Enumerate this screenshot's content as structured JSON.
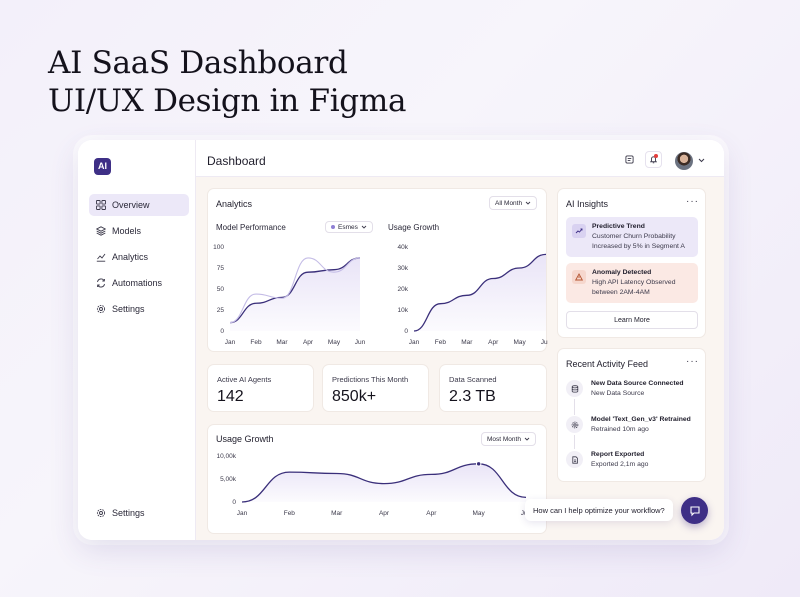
{
  "headline": [
    "AI SaaS Dashboard",
    "UI/UX Design in Figma"
  ],
  "logo": "AI",
  "sidebar": {
    "items": [
      {
        "label": "Overview",
        "icon": "grid-icon",
        "active": true
      },
      {
        "label": "Models",
        "icon": "layers-icon"
      },
      {
        "label": "Analytics",
        "icon": "chart-icon"
      },
      {
        "label": "Automations",
        "icon": "refresh-icon"
      },
      {
        "label": "Settings",
        "icon": "gear-icon"
      }
    ],
    "bottom": {
      "label": "Settings",
      "icon": "gear-icon"
    }
  },
  "header": {
    "title": "Dashboard"
  },
  "analytics": {
    "title": "Analytics",
    "filter": "All Month",
    "model_performance": {
      "title": "Model Performance",
      "filter": "Esmes",
      "chart_data": {
        "type": "area",
        "categories": [
          "Jan",
          "Feb",
          "Mar",
          "Apr",
          "May",
          "Jun"
        ],
        "yticks": [
          "0",
          "25",
          "50",
          "75",
          "100"
        ],
        "ylim": [
          0,
          100
        ],
        "series": [
          {
            "values": [
              10,
              33,
              40,
              70,
              73,
              87
            ]
          },
          {
            "values": [
              10,
              44,
              39,
              87,
              70,
              87
            ]
          }
        ]
      }
    },
    "usage_growth": {
      "title": "Usage Growth",
      "chart_data": {
        "type": "area",
        "categories": [
          "Jan",
          "Feb",
          "Mar",
          "Apr",
          "May",
          "Jun"
        ],
        "yticks": [
          "0",
          "10k",
          "20k",
          "30k",
          "40k"
        ],
        "ylim": [
          0,
          40000
        ],
        "series": [
          {
            "values": [
              0,
              13000,
              17000,
              25000,
              30000,
              36500
            ]
          }
        ]
      }
    }
  },
  "stats": [
    {
      "label": "Active AI Agents",
      "value": "142"
    },
    {
      "label": "Predictions This Month",
      "value": "850k+"
    },
    {
      "label": "Data Scanned",
      "value": "2.3 TB"
    }
  ],
  "usage_growth_bottom": {
    "title": "Usage Growth",
    "filter": "Most Month",
    "chart_data": {
      "type": "area",
      "categories": [
        "Jan",
        "Feb",
        "Mar",
        "Apr",
        "Apr",
        "May",
        "Jun"
      ],
      "yticks": [
        "0",
        "5,00k",
        "10,00k"
      ],
      "ylim": [
        0,
        10000
      ],
      "series": [
        {
          "values": [
            0,
            6500,
            6200,
            4000,
            6000,
            8300,
            1000
          ]
        }
      ]
    }
  },
  "insights": {
    "title": "AI Insights",
    "menu": "···",
    "items": [
      {
        "title": "Predictive Trend",
        "desc1": "Customer Churn Probability",
        "desc2": "Increased by 5% in Segment A",
        "color": "#ece8f8",
        "icon": "trend-icon"
      },
      {
        "title": "Anomaly Detected",
        "desc1": "High API Latency Observed",
        "desc2": "between 2AM-4AM",
        "color": "#fbe9e4",
        "icon": "warning-icon"
      }
    ],
    "button": "Learn More"
  },
  "feed": {
    "title": "Recent Activity Feed",
    "menu": "···",
    "items": [
      {
        "title": "New Data Source Connected",
        "desc": "New Data Source",
        "icon": "database-icon"
      },
      {
        "title": "Model 'Text_Gen_v3' Retrained",
        "desc": "Retrained 10m ago",
        "icon": "gear-icon"
      },
      {
        "title": "Report Exported",
        "desc": "Exported 2,1m ago",
        "icon": "document-icon"
      }
    ]
  },
  "chat": {
    "prompt": "How can I help optimize your workflow?"
  },
  "colors": {
    "accent": "#3e2f86",
    "line": "#3a2f7a",
    "area": "#e9e4f7"
  }
}
